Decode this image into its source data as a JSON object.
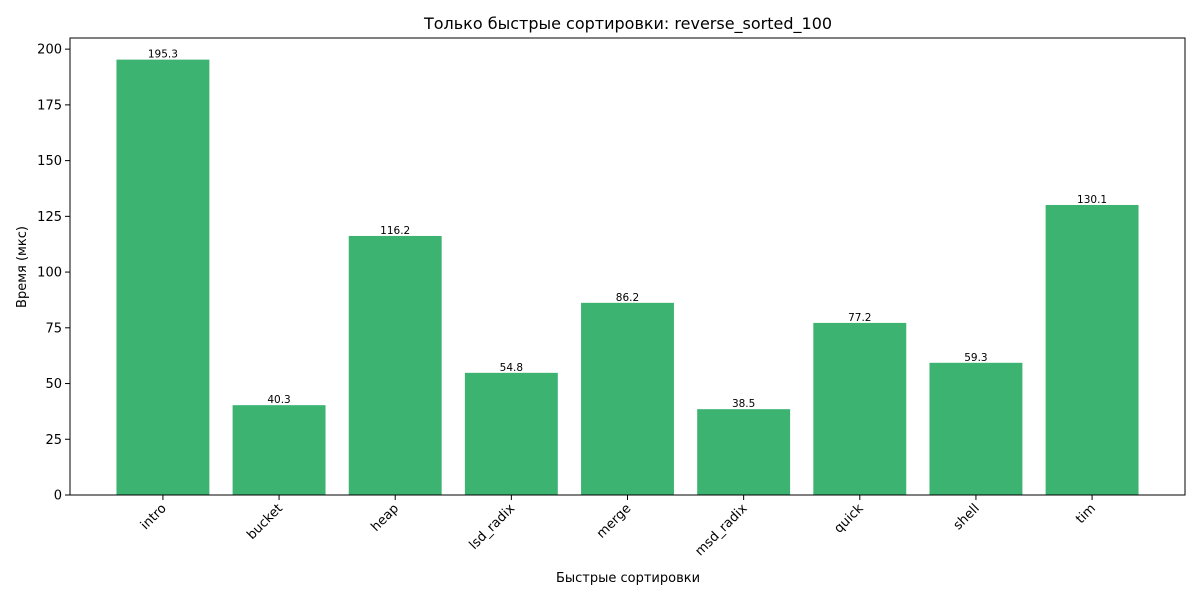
{
  "chart_data": {
    "type": "bar",
    "title": "Только быстрые сортировки: reverse_sorted_100",
    "xlabel": "Быстрые сортировки",
    "ylabel": "Время (мкс)",
    "categories": [
      "intro",
      "bucket",
      "heap",
      "lsd_radix",
      "merge",
      "msd_radix",
      "quick",
      "shell",
      "tim"
    ],
    "values": [
      195.3,
      40.3,
      116.2,
      54.8,
      86.2,
      38.5,
      77.2,
      59.3,
      130.1
    ],
    "data_labels": [
      "195.3",
      "40.3",
      "116.2",
      "54.8",
      "86.2",
      "38.5",
      "77.2",
      "59.3",
      "130.1"
    ],
    "ylim": [
      0,
      205
    ],
    "yticks": [
      0,
      25,
      50,
      75,
      100,
      125,
      150,
      175,
      200
    ],
    "xtick_rotation_deg": 45,
    "bar_color": "#3cb371",
    "grid": false,
    "legend": "none"
  }
}
